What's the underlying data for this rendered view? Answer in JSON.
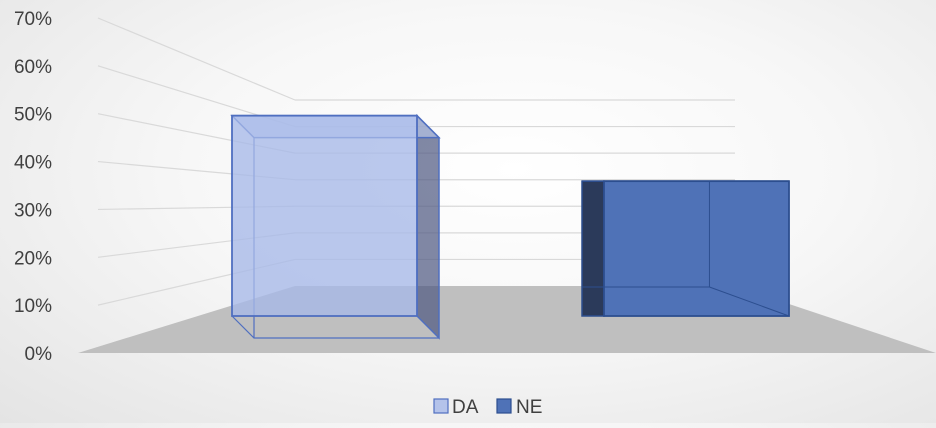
{
  "chart_data": {
    "type": "bar",
    "style": "3d-column",
    "categories": [
      ""
    ],
    "series": [
      {
        "name": "DA",
        "values": [
          0.52
        ],
        "color": "#b4c3ea"
      },
      {
        "name": "NE",
        "values": [
          0.35
        ],
        "color": "#4f72b7"
      }
    ],
    "ylim": [
      0,
      0.7
    ],
    "yticks": [
      "0%",
      "10%",
      "20%",
      "30%",
      "40%",
      "50%",
      "60%",
      "70%"
    ],
    "title": "",
    "xlabel": "",
    "ylabel": "",
    "grid": true,
    "legend_position": "bottom"
  }
}
